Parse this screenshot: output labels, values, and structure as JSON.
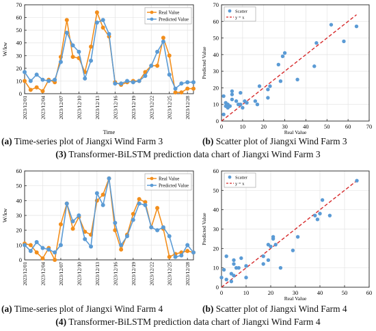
{
  "colors": {
    "real": "#f28e1c",
    "pred": "#5b9bd5",
    "fit": "#d62728"
  },
  "dates": [
    "2023/12/01",
    "2023/12/04",
    "2023/12/07",
    "2023/12/10",
    "2023/12/13",
    "2023/12/16",
    "2023/12/19",
    "2023/12/22",
    "2023/12/25",
    "2023/12/28"
  ],
  "captions": {
    "a3_tag": "(a)",
    "a3_text": " Time-series plot of Jiangxi Wind Farm 3",
    "b3_tag": "(b)",
    "b3_text": " Scatter plot of Jiangxi Wind Farm 3",
    "main3_tag": "(3)",
    "main3_text": " Transformer-BiLSTM prediction data chart of Jiangxi Wind Farm 3",
    "a4_tag": "(a)",
    "a4_text": " Time-series plot of Jiangxi Wind Farm 4",
    "b4_tag": "(b)",
    "b4_text": " Scatter plot of Jiangxi Wind Farm 4",
    "main4_tag": "(4)",
    "main4_text": " Transformer-BiLSTM prediction data chart of Jiangxi Wind Farm 4"
  },
  "chart_data": [
    {
      "type": "line",
      "xlabel": "Time",
      "ylabel": "W/kw",
      "ylim": [
        0,
        70
      ],
      "yticks": [
        0,
        10,
        20,
        30,
        40,
        50,
        60,
        70
      ],
      "x_tick_every": 3,
      "legend": "top-right",
      "series": [
        {
          "name": "Real Value",
          "values": [
            10,
            3,
            5,
            2,
            11,
            9,
            29,
            58,
            29,
            28,
            17,
            37,
            64,
            52,
            45,
            9,
            7,
            9,
            10,
            10,
            17,
            22,
            22,
            44,
            30,
            1,
            1,
            4,
            4
          ]
        },
        {
          "name": "Predicted Value",
          "values": [
            17,
            10,
            15,
            11,
            10,
            11,
            25,
            48,
            38,
            33,
            12,
            26,
            56,
            58,
            47,
            8,
            8,
            10,
            9,
            10,
            14,
            22,
            33,
            41,
            15,
            4,
            8,
            9,
            9
          ]
        }
      ]
    },
    {
      "type": "scatter",
      "xlabel": "Real Value",
      "ylabel": "Predicted Value",
      "xlim": [
        0,
        70
      ],
      "ylim": [
        0,
        70
      ],
      "ticks": [
        0,
        10,
        20,
        30,
        40,
        50,
        60,
        70
      ],
      "legend": "top-left",
      "series": [
        {
          "name": "Scatter",
          "points": [
            [
              1,
              15
            ],
            [
              1,
              4
            ],
            [
              2,
              9
            ],
            [
              2,
              11
            ],
            [
              3,
              8
            ],
            [
              3,
              10
            ],
            [
              4,
              9
            ],
            [
              5,
              13
            ],
            [
              5,
              16
            ],
            [
              5,
              18
            ],
            [
              7,
              12
            ],
            [
              8,
              10
            ],
            [
              9,
              10
            ],
            [
              9,
              17
            ],
            [
              10,
              8
            ],
            [
              11,
              12
            ],
            [
              12,
              11
            ],
            [
              16,
              12
            ],
            [
              17,
              10
            ],
            [
              18,
              21
            ],
            [
              22,
              14
            ],
            [
              22,
              19
            ],
            [
              23,
              21
            ],
            [
              27,
              34
            ],
            [
              28,
              24
            ],
            [
              29,
              39
            ],
            [
              30,
              41
            ],
            [
              36,
              25
            ],
            [
              44,
              33
            ],
            [
              45,
              47
            ],
            [
              52,
              58
            ],
            [
              58,
              48
            ],
            [
              64,
              57
            ]
          ]
        },
        {
          "name": "y = x",
          "line": [
            [
              0,
              0
            ],
            [
              64,
              64
            ]
          ]
        }
      ]
    },
    {
      "type": "line",
      "xlabel": "",
      "ylabel": "W/kw",
      "ylim": [
        0,
        60
      ],
      "yticks": [
        0,
        10,
        20,
        30,
        40,
        50,
        60
      ],
      "x_tick_every": 3,
      "legend": "top-right",
      "series": [
        {
          "name": "Real Value",
          "values": [
            11,
            10,
            5,
            1,
            8,
            0,
            24,
            38,
            21,
            29,
            19,
            17,
            40,
            44,
            55,
            20,
            7,
            17,
            31,
            41,
            39,
            22,
            35,
            21,
            2,
            4,
            5,
            6,
            5
          ]
        },
        {
          "name": "Predicted Value",
          "values": [
            10,
            6,
            12,
            8,
            7,
            5,
            10,
            38,
            26,
            30,
            14,
            9,
            45,
            37,
            55,
            25,
            10,
            16,
            27,
            38,
            37,
            22,
            20,
            22,
            16,
            2,
            3,
            10,
            5
          ]
        }
      ]
    },
    {
      "type": "scatter",
      "xlabel": "Real Value",
      "ylabel": "Predicted Value",
      "xlim": [
        0,
        60
      ],
      "ylim": [
        0,
        60
      ],
      "ticks": [
        0,
        10,
        20,
        30,
        40,
        50,
        60
      ],
      "legend": "top-left",
      "series": [
        {
          "name": "Scatter",
          "points": [
            [
              0,
              5
            ],
            [
              1,
              9
            ],
            [
              2,
              4
            ],
            [
              2,
              16
            ],
            [
              4,
              3
            ],
            [
              4,
              7
            ],
            [
              5,
              6
            ],
            [
              5,
              12
            ],
            [
              5,
              14
            ],
            [
              6,
              10
            ],
            [
              7,
              10
            ],
            [
              8,
              15
            ],
            [
              10,
              5
            ],
            [
              10,
              11
            ],
            [
              17,
              12
            ],
            [
              17,
              16
            ],
            [
              19,
              14
            ],
            [
              19,
              22
            ],
            [
              20,
              21
            ],
            [
              21,
              25
            ],
            [
              21,
              26
            ],
            [
              22,
              22
            ],
            [
              24,
              10
            ],
            [
              29,
              19
            ],
            [
              31,
              26
            ],
            [
              38,
              37
            ],
            [
              39,
              35
            ],
            [
              40,
              38
            ],
            [
              41,
              45
            ],
            [
              44,
              37
            ],
            [
              55,
              55
            ]
          ]
        },
        {
          "name": "y = x",
          "line": [
            [
              0,
              0
            ],
            [
              55,
              55
            ]
          ]
        }
      ]
    }
  ]
}
